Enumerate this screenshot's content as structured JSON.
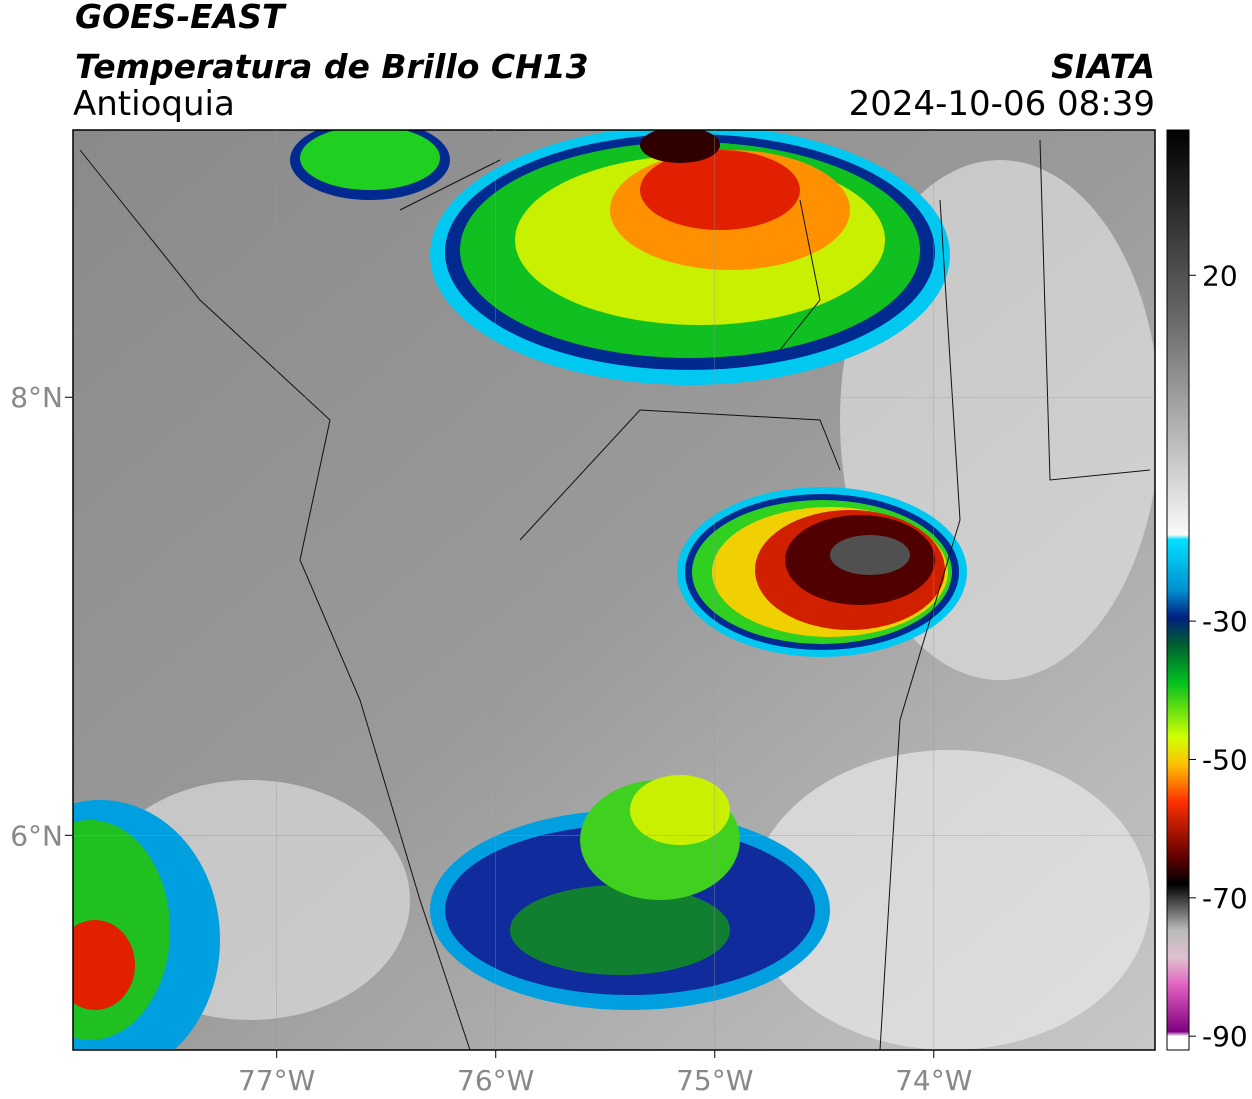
{
  "header": {
    "title": "GOES-EAST",
    "subtitle": "Temperatura de Brillo CH13",
    "region": "Antioquia",
    "source": "SIATA",
    "datetime": "2024-10-06 08:39"
  },
  "map": {
    "xlim": [
      -77.93,
      -72.99
    ],
    "ylim": [
      5.02,
      9.22
    ],
    "xticks": [
      {
        "value": -77,
        "label": "77°W"
      },
      {
        "value": -76,
        "label": "76°W"
      },
      {
        "value": -75,
        "label": "75°W"
      },
      {
        "value": -74,
        "label": "74°W"
      }
    ],
    "yticks": [
      {
        "value": 8,
        "label": "8°N"
      },
      {
        "value": 6,
        "label": "6°N"
      }
    ]
  },
  "colorbar": {
    "lim": [
      -92,
      41
    ],
    "ticks": [
      20,
      -30,
      -50,
      -70,
      -90
    ]
  }
}
